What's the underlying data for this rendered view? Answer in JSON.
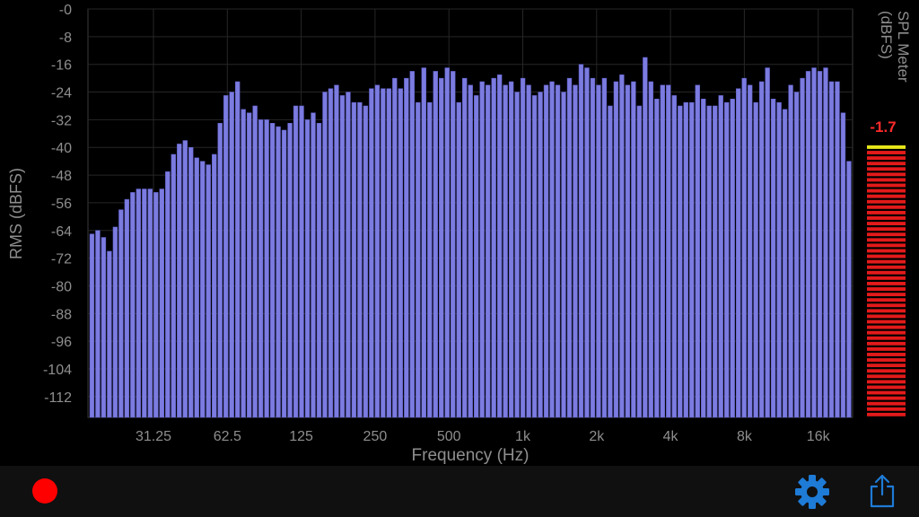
{
  "colors": {
    "background": "#000000",
    "plot_background": "#000000",
    "grid": "#262626",
    "axis_text": "#8e8e8e",
    "bar_fill": "#7b7be0",
    "bar_stroke": "#5b5bc4",
    "meter_red": "#e31a1a",
    "meter_yellow": "#e6e619",
    "meter_value": "#ff2a2a",
    "record": "#ff0000",
    "accent_blue": "#1e7bd6",
    "bottom_bar": "#101010"
  },
  "icons": {
    "record": "record-icon",
    "settings": "gear-icon",
    "share": "share-icon"
  },
  "spl_meter": {
    "label_line1": "SPL Meter",
    "label_line2": "(dBFS)",
    "value": "-1.7",
    "level_fraction": 0.99
  },
  "chart_data": {
    "type": "bar",
    "xlabel": "Frequency (Hz)",
    "ylabel": "RMS (dBFS)",
    "ylim": [
      -118,
      0
    ],
    "yticks": [
      0,
      -8,
      -16,
      -24,
      -32,
      -40,
      -48,
      -56,
      -64,
      -72,
      -80,
      -88,
      -96,
      -104,
      -112
    ],
    "ytick_labels": [
      "-0",
      "-8",
      "-16",
      "-24",
      "-32",
      "-40",
      "-48",
      "-56",
      "-64",
      "-72",
      "-80",
      "-88",
      "-96",
      "-104",
      "-112"
    ],
    "x_scale": "log2",
    "x_ticks": [
      "31.25",
      "62.5",
      "125",
      "250",
      "500",
      "1k",
      "2k",
      "4k",
      "8k",
      "16k"
    ],
    "grid": true,
    "values": [
      -65,
      -64,
      -66,
      -70,
      -63,
      -58,
      -55,
      -53,
      -52,
      -52,
      -52,
      -53,
      -52,
      -47,
      -42,
      -39,
      -38,
      -40,
      -43,
      -44,
      -45,
      -42,
      -33,
      -25,
      -24,
      -21,
      -29,
      -30,
      -28,
      -32,
      -32,
      -33,
      -34,
      -35,
      -33,
      -28,
      -28,
      -32,
      -30,
      -33,
      -24,
      -23,
      -22,
      -25,
      -24,
      -27,
      -27,
      -28,
      -23,
      -22,
      -23,
      -23,
      -20,
      -23,
      -20,
      -18,
      -27,
      -17,
      -27,
      -18,
      -20,
      -17,
      -18,
      -27,
      -20,
      -22,
      -25,
      -21,
      -22,
      -20,
      -19,
      -22,
      -21,
      -24,
      -20,
      -22,
      -25,
      -24,
      -22,
      -21,
      -22,
      -24,
      -20,
      -22,
      -16,
      -17,
      -20,
      -22,
      -20,
      -28,
      -21,
      -19,
      -22,
      -21,
      -28,
      -14,
      -21,
      -26,
      -22,
      -22,
      -25,
      -28,
      -27,
      -27,
      -22,
      -26,
      -28,
      -28,
      -25,
      -27,
      -26,
      -23,
      -20,
      -22,
      -27,
      -21,
      -17,
      -26,
      -27,
      -29,
      -22,
      -24,
      -20,
      -18,
      -17,
      -18,
      -17,
      -21,
      -21,
      -30,
      -44
    ]
  }
}
